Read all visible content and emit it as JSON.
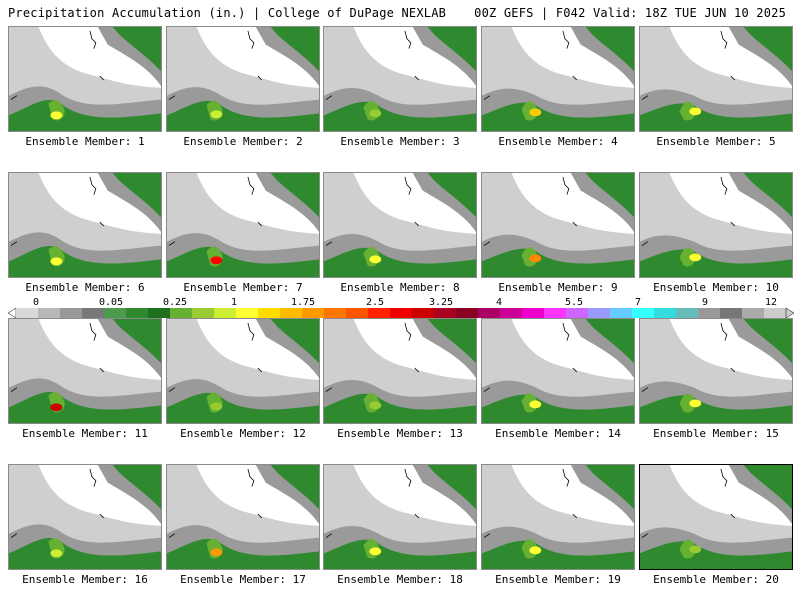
{
  "header": {
    "title": "Precipitation Accumulation (in.) | College of DuPage NEXLAB",
    "run_info": "00Z GEFS | F042 Valid: 18Z TUE JUN 10 2025"
  },
  "members": [
    {
      "label": "Ensemble Member: 1",
      "peak": "#ffff33"
    },
    {
      "label": "Ensemble Member: 2",
      "peak": "#ccee33"
    },
    {
      "label": "Ensemble Member: 3",
      "peak": "#99cc33"
    },
    {
      "label": "Ensemble Member: 4",
      "peak": "#ffcc00"
    },
    {
      "label": "Ensemble Member: 5",
      "peak": "#ffff33"
    },
    {
      "label": "Ensemble Member: 6",
      "peak": "#ffff33"
    },
    {
      "label": "Ensemble Member: 7",
      "peak": "#ff0000"
    },
    {
      "label": "Ensemble Member: 8",
      "peak": "#ffff33"
    },
    {
      "label": "Ensemble Member: 9",
      "peak": "#ff8800"
    },
    {
      "label": "Ensemble Member: 10",
      "peak": "#ffff33"
    },
    {
      "label": "Ensemble Member: 11",
      "peak": "#cc0000"
    },
    {
      "label": "Ensemble Member: 12",
      "peak": "#99cc33"
    },
    {
      "label": "Ensemble Member: 13",
      "peak": "#99cc33"
    },
    {
      "label": "Ensemble Member: 14",
      "peak": "#ffff33"
    },
    {
      "label": "Ensemble Member: 15",
      "peak": "#ffff33"
    },
    {
      "label": "Ensemble Member: 16",
      "peak": "#ccee33"
    },
    {
      "label": "Ensemble Member: 17",
      "peak": "#ff9900"
    },
    {
      "label": "Ensemble Member: 18",
      "peak": "#ffff33"
    },
    {
      "label": "Ensemble Member: 19",
      "peak": "#ffff33"
    },
    {
      "label": "Ensemble Member: 20",
      "peak": "#99cc33"
    }
  ],
  "colorbar": {
    "labels": [
      "0",
      "0.05",
      "0.25",
      "1",
      "1.75",
      "2.5",
      "3.25",
      "4",
      "5.5",
      "7",
      "9",
      "12"
    ],
    "colors": [
      "#d8d8d8",
      "#b8b8b8",
      "#989898",
      "#787878",
      "#4c9a4c",
      "#2f8a2f",
      "#1f6f1f",
      "#66b032",
      "#99cc33",
      "#ccee33",
      "#ffff33",
      "#ffdd00",
      "#ffbb00",
      "#ff9900",
      "#ff7700",
      "#ff5500",
      "#ff2200",
      "#ee0000",
      "#cc0000",
      "#aa0022",
      "#880022",
      "#aa0066",
      "#cc0099",
      "#ee00cc",
      "#ff33ff",
      "#cc66ff",
      "#9999ff",
      "#66ccff",
      "#33ffff",
      "#33dddd",
      "#66bbbb",
      "#999999",
      "#777777",
      "#aaaaaa",
      "#cccccc"
    ]
  }
}
